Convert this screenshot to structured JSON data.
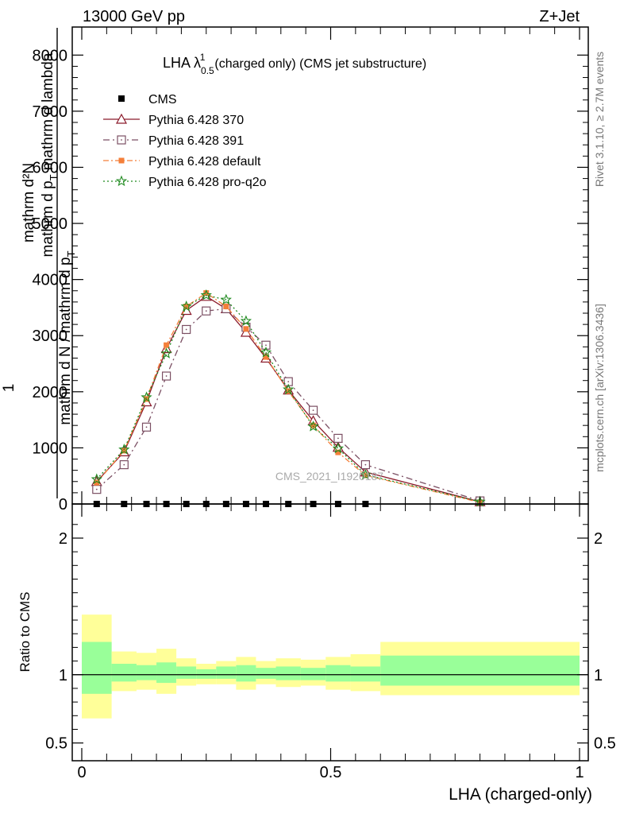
{
  "header": {
    "left": "13000 GeV pp",
    "right": "Z+Jet"
  },
  "side_labels": {
    "rivet": "Rivet 3.1.10, ≥ 2.7M events",
    "mcplots": "mcplots.cern.ch [arXiv:1306.3436]"
  },
  "watermark": "CMS_2021_I1920187",
  "chart_data": [
    {
      "type": "line",
      "title": "LHA λ",
      "title_sup": "1",
      "title_sub": "0.5",
      "title_rest": "(charged only) (CMS jet substructure)",
      "ylabel_num": "mathrm d²N",
      "ylabel_num_tail": "mathrm d p",
      "ylabel_num_tail_sub": "T",
      "ylabel_num_tail_end": "mathrm d lambda",
      "ylabel_prefix": "1",
      "ylabel_den": "mathrm d N / mathrm d p",
      "ylabel_den_sub": "T",
      "xlim": [
        0,
        1
      ],
      "ylim": [
        0,
        8500
      ],
      "y_ticks": [
        0,
        1000,
        2000,
        3000,
        4000,
        5000,
        6000,
        7000,
        8000
      ],
      "y_tick_labels": [
        "0",
        "1000",
        "2000",
        "3000",
        "4000",
        "5000",
        "6000",
        "7000",
        "8000"
      ],
      "legend_position": "top-left",
      "x": [
        0.03,
        0.085,
        0.13,
        0.17,
        0.21,
        0.25,
        0.29,
        0.33,
        0.37,
        0.415,
        0.465,
        0.515,
        0.57,
        0.8
      ],
      "series": [
        {
          "name": "CMS",
          "color": "#000000",
          "marker": "square-filled",
          "values": [
            0,
            0,
            0,
            0,
            0,
            0,
            0,
            0,
            0,
            0,
            0,
            0,
            0,
            null
          ]
        },
        {
          "name": "Pythia 6.428 370",
          "color": "#8b1a2b",
          "marker": "triangle-open",
          "dash": "",
          "values": [
            400,
            930,
            1820,
            2770,
            3450,
            3700,
            3480,
            3060,
            2600,
            2030,
            1480,
            1010,
            570,
            40
          ]
        },
        {
          "name": "Pythia 6.428 391",
          "color": "#7b4f63",
          "marker": "square-dot",
          "dash": "8,4,2,4",
          "values": [
            260,
            700,
            1370,
            2280,
            3110,
            3440,
            3480,
            3150,
            2830,
            2180,
            1670,
            1170,
            700,
            55
          ]
        },
        {
          "name": "Pythia 6.428 default",
          "color": "#f47f3a",
          "marker": "square-filled-small",
          "dash": "7,3,2,3",
          "values": [
            380,
            950,
            1870,
            2830,
            3520,
            3760,
            3520,
            3120,
            2620,
            2010,
            1400,
            920,
            510,
            30
          ]
        },
        {
          "name": "Pythia 6.428 pro-q2o",
          "color": "#1f8a1f",
          "marker": "star",
          "dash": "2,3",
          "values": [
            440,
            970,
            1900,
            2680,
            3520,
            3720,
            3640,
            3260,
            2700,
            2040,
            1380,
            990,
            520,
            40
          ]
        }
      ]
    },
    {
      "type": "area",
      "ylabel": "Ratio to CMS",
      "xlabel": "LHA (charged-only)",
      "xlim": [
        0,
        1
      ],
      "ylim": [
        0.37,
        2.25
      ],
      "x_ticks": [
        0,
        0.5,
        1
      ],
      "x_tick_labels": [
        "0",
        "0.5",
        "1"
      ],
      "y_ticks": [
        0.5,
        1,
        2
      ],
      "y_tick_labels": [
        "0.5",
        "1",
        "2"
      ],
      "bins": [
        0,
        0.06,
        0.11,
        0.15,
        0.19,
        0.23,
        0.27,
        0.31,
        0.35,
        0.39,
        0.44,
        0.49,
        0.54,
        0.6,
        1.0
      ],
      "band_inner": [
        [
          0.86,
          1.24
        ],
        [
          0.95,
          1.08
        ],
        [
          0.96,
          1.07
        ],
        [
          0.94,
          1.09
        ],
        [
          0.97,
          1.06
        ],
        [
          0.97,
          1.04
        ],
        [
          0.97,
          1.06
        ],
        [
          0.95,
          1.07
        ],
        [
          0.97,
          1.05
        ],
        [
          0.96,
          1.06
        ],
        [
          0.96,
          1.05
        ],
        [
          0.95,
          1.07
        ],
        [
          0.95,
          1.06
        ],
        [
          0.92,
          1.14
        ]
      ],
      "band_outer": [
        [
          0.68,
          1.44
        ],
        [
          0.88,
          1.17
        ],
        [
          0.89,
          1.16
        ],
        [
          0.86,
          1.19
        ],
        [
          0.92,
          1.12
        ],
        [
          0.93,
          1.08
        ],
        [
          0.93,
          1.1
        ],
        [
          0.89,
          1.13
        ],
        [
          0.93,
          1.1
        ],
        [
          0.91,
          1.12
        ],
        [
          0.92,
          1.11
        ],
        [
          0.89,
          1.13
        ],
        [
          0.88,
          1.15
        ],
        [
          0.85,
          1.24
        ]
      ],
      "inner_color": "#99ff99",
      "outer_color": "#ffff99"
    }
  ]
}
